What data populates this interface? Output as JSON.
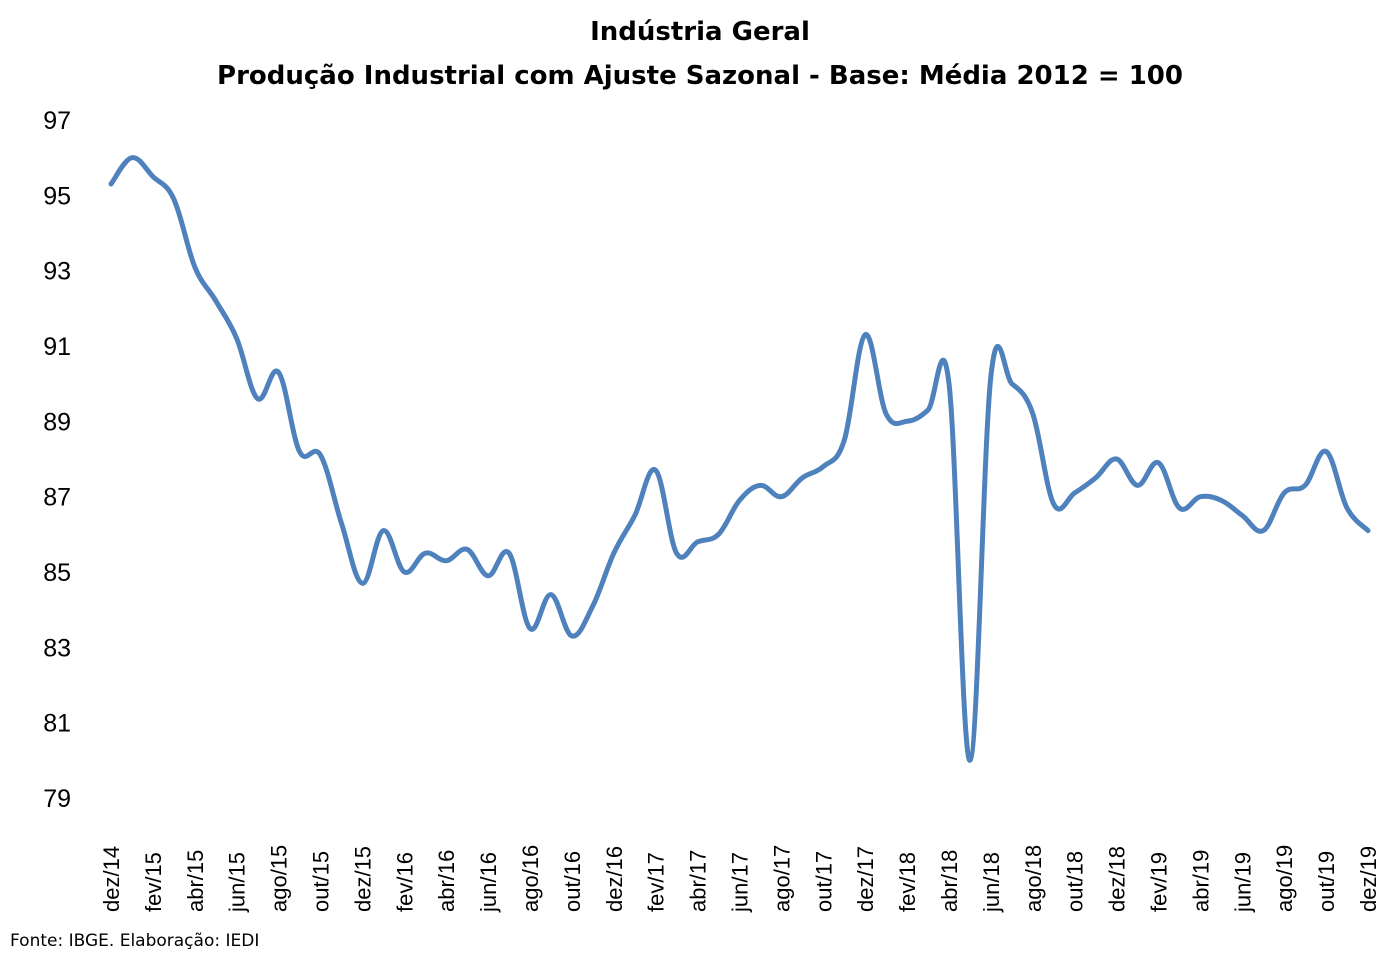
{
  "chart_data": {
    "type": "line",
    "title": "Indústria Geral",
    "subtitle": "Produção Industrial com Ajuste Sazonal - Base: Média 2012 = 100",
    "xlabel": "",
    "ylabel": "",
    "ylim": [
      79,
      97
    ],
    "yticks": [
      "97",
      "95",
      "93",
      "91",
      "89",
      "87",
      "85",
      "83",
      "81",
      "79"
    ],
    "grid": false,
    "line_color": "#4f81bd",
    "x": [
      "dez/14",
      "jan/15",
      "fev/15",
      "mar/15",
      "abr/15",
      "mai/15",
      "jun/15",
      "jul/15",
      "ago/15",
      "set/15",
      "out/15",
      "nov/15",
      "dez/15",
      "jan/16",
      "fev/16",
      "mar/16",
      "abr/16",
      "mai/16",
      "jun/16",
      "jul/16",
      "ago/16",
      "set/16",
      "out/16",
      "nov/16",
      "dez/16",
      "jan/17",
      "fev/17",
      "mar/17",
      "abr/17",
      "mai/17",
      "jun/17",
      "jul/17",
      "ago/17",
      "set/17",
      "out/17",
      "nov/17",
      "dez/17",
      "jan/18",
      "fev/18",
      "mar/18",
      "abr/18",
      "mai/18",
      "jun/18",
      "jul/18",
      "ago/18",
      "set/18",
      "out/18",
      "nov/18",
      "dez/18",
      "jan/19",
      "fev/19",
      "mar/19",
      "abr/19",
      "mai/19",
      "jun/19",
      "jul/19",
      "ago/19",
      "set/19",
      "out/19",
      "nov/19",
      "dez/19"
    ],
    "x_tick_labels": [
      "dez/14",
      "fev/15",
      "abr/15",
      "jun/15",
      "ago/15",
      "out/15",
      "dez/15",
      "fev/16",
      "abr/16",
      "jun/16",
      "ago/16",
      "out/16",
      "dez/16",
      "fev/17",
      "abr/17",
      "jun/17",
      "ago/17",
      "out/17",
      "dez/17",
      "fev/18",
      "abr/18",
      "jun/18",
      "ago/18",
      "out/18",
      "dez/18",
      "fev/19",
      "abr/19",
      "jun/19",
      "ago/19",
      "out/19",
      "dez/19"
    ],
    "series": [
      {
        "values": [
          95.3,
          96.0,
          95.5,
          94.9,
          93.1,
          92.2,
          91.2,
          89.6,
          90.3,
          88.2,
          88.1,
          86.3,
          84.7,
          86.1,
          85.0,
          85.5,
          85.3,
          85.6,
          84.9,
          85.5,
          83.5,
          84.4,
          83.3,
          84.1,
          85.5,
          86.5,
          87.7,
          85.5,
          85.8,
          86.0,
          86.9,
          87.3,
          87.0,
          87.5,
          87.8,
          88.5,
          91.3,
          89.2,
          89.0,
          89.3,
          90.0,
          80.0,
          90.2,
          90.0,
          89.2,
          86.8,
          87.1,
          87.5,
          88.0,
          87.3,
          87.9,
          86.7,
          87.0,
          86.9,
          86.5,
          86.1,
          87.1,
          87.3,
          88.2,
          86.7,
          86.1
        ]
      }
    ]
  },
  "source_note": "Fonte: IBGE. Elaboração: IEDI"
}
